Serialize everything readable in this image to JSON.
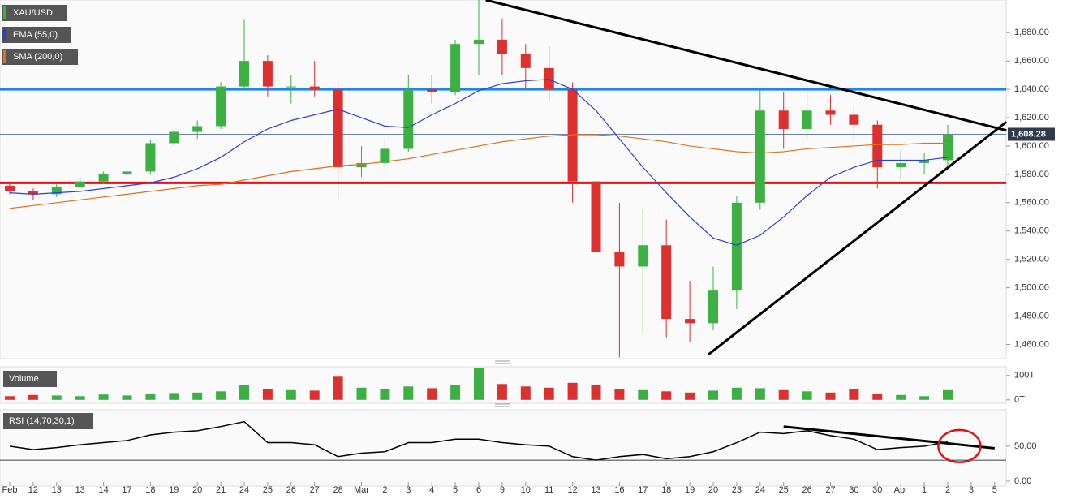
{
  "chart_data": [
    {
      "type": "candlestick",
      "title": "XAU/USD",
      "categories": [
        "Feb",
        "12",
        "13",
        "13",
        "14",
        "17",
        "18",
        "19",
        "20",
        "21",
        "24",
        "25",
        "26",
        "27",
        "28",
        "Mar",
        "2",
        "3",
        "4",
        "5",
        "6",
        "9",
        "10",
        "11",
        "12",
        "13",
        "16",
        "17",
        "18",
        "19",
        "20",
        "23",
        "24",
        "25",
        "26",
        "27",
        "30",
        "30",
        "Apr",
        "1",
        "2",
        "3",
        "5"
      ],
      "open": [
        1572,
        1568,
        1566,
        1571,
        1575,
        1580,
        1582,
        1602,
        1610,
        1614,
        1642,
        1660,
        1642,
        1642,
        1640,
        1585,
        1588,
        1598,
        1640,
        1638,
        1672,
        1675,
        1665,
        1655,
        1640,
        1575,
        1525,
        1515,
        1530,
        1478,
        1475,
        1498,
        1560,
        1625,
        1612,
        1625,
        1622,
        1615,
        1585,
        1588,
        1590,
        null,
        null
      ],
      "high": [
        1575,
        1570,
        1573,
        1578,
        1582,
        1584,
        1604,
        1612,
        1618,
        1645,
        1689,
        1664,
        1650,
        1660,
        1645,
        1600,
        1605,
        1650,
        1650,
        1675,
        1703,
        1690,
        1672,
        1670,
        1645,
        1590,
        1560,
        1555,
        1548,
        1505,
        1515,
        1565,
        1640,
        1638,
        1642,
        1636,
        1628,
        1618,
        1597,
        1595,
        1615,
        null,
        null
      ],
      "low": [
        1566,
        1562,
        1564,
        1570,
        1573,
        1578,
        1580,
        1600,
        1605,
        1612,
        1640,
        1635,
        1630,
        1635,
        1563,
        1578,
        1584,
        1596,
        1630,
        1636,
        1650,
        1650,
        1640,
        1632,
        1560,
        1505,
        1451,
        1468,
        1465,
        1462,
        1470,
        1485,
        1555,
        1598,
        1605,
        1615,
        1605,
        1570,
        1577,
        1580,
        1585,
        null,
        null
      ],
      "close": [
        1568,
        1566,
        1571,
        1575,
        1580,
        1582,
        1602,
        1610,
        1614,
        1642,
        1660,
        1642,
        1642,
        1640,
        1585,
        1588,
        1598,
        1640,
        1638,
        1672,
        1675,
        1665,
        1655,
        1640,
        1575,
        1525,
        1515,
        1530,
        1478,
        1475,
        1498,
        1560,
        1625,
        1612,
        1625,
        1622,
        1615,
        1585,
        1588,
        1590,
        1608,
        null,
        null
      ],
      "up_color": "#3cb043",
      "down_color": "#dd3030",
      "series": [
        {
          "name": "EMA (55,0)",
          "color": "#2b3fd6",
          "values": [
            1567,
            1566,
            1567,
            1568,
            1570,
            1572,
            1574,
            1578,
            1584,
            1592,
            1603,
            1612,
            1618,
            1622,
            1626,
            1620,
            1614,
            1613,
            1622,
            1630,
            1639,
            1644,
            1646,
            1647,
            1640,
            1625,
            1605,
            1585,
            1567,
            1550,
            1535,
            1530,
            1537,
            1550,
            1565,
            1578,
            1585,
            1590,
            1590,
            1590,
            1592,
            null,
            null
          ]
        },
        {
          "name": "SMA (200,0)",
          "color": "#e07020",
          "values": [
            1556,
            1558,
            1560,
            1562,
            1564,
            1566,
            1568,
            1570,
            1572,
            1573,
            1576,
            1579,
            1582,
            1584,
            1586,
            1587,
            1589,
            1591,
            1594,
            1597,
            1600,
            1603,
            1605,
            1607,
            1608,
            1608,
            1607,
            1605,
            1603,
            1600,
            1598,
            1596,
            1595,
            1596,
            1598,
            1599,
            1600,
            1601,
            1601,
            1602,
            1602,
            null,
            null
          ]
        }
      ],
      "levels": [
        {
          "value": 1640,
          "color": "#1e88e5"
        },
        {
          "value": 1574,
          "color": "#e81010"
        }
      ],
      "trendlines": [
        {
          "x": [
            20.3,
            42.5
          ],
          "y": [
            1703,
            1611
          ]
        },
        {
          "x": [
            29.8,
            42.5
          ],
          "y": [
            1453,
            1617
          ]
        }
      ],
      "last_price": {
        "value": 1608.28,
        "label": "1,608.28"
      },
      "ylim": [
        1450,
        1703
      ],
      "yticks": [
        {
          "value": 1460,
          "label": "1,460.00"
        },
        {
          "value": 1480,
          "label": "1,480.00"
        },
        {
          "value": 1500,
          "label": "1,500.00"
        },
        {
          "value": 1520,
          "label": "1,520.00"
        },
        {
          "value": 1540,
          "label": "1,540.00"
        },
        {
          "value": 1560,
          "label": "1,560.00"
        },
        {
          "value": 1580,
          "label": "1,580.00"
        },
        {
          "value": 1600,
          "label": "1,600.00"
        },
        {
          "value": 1620,
          "label": "1,620.00"
        },
        {
          "value": 1640,
          "label": "1,640.00"
        },
        {
          "value": 1660,
          "label": "1,660.00"
        },
        {
          "value": 1680,
          "label": "1,680.00"
        }
      ]
    },
    {
      "type": "bar",
      "title": "Volume",
      "values": [
        15,
        20,
        18,
        15,
        22,
        18,
        25,
        28,
        30,
        35,
        60,
        45,
        40,
        38,
        95,
        50,
        45,
        55,
        48,
        60,
        130,
        65,
        55,
        50,
        70,
        60,
        45,
        40,
        35,
        30,
        38,
        50,
        48,
        40,
        35,
        30,
        45,
        25,
        20,
        15,
        40,
        null,
        null
      ],
      "ylim": [
        -14,
        136
      ],
      "yticks": [
        {
          "value": 0,
          "label": "0T"
        },
        {
          "value": 100,
          "label": "100T"
        }
      ]
    },
    {
      "type": "line",
      "title": "RSI (14,70,30,1)",
      "values": [
        50,
        45,
        48,
        52,
        55,
        58,
        66,
        70,
        72,
        78,
        85,
        55,
        55,
        52,
        35,
        40,
        42,
        55,
        55,
        60,
        60,
        55,
        52,
        50,
        35,
        30,
        35,
        38,
        32,
        35,
        42,
        55,
        70,
        68,
        72,
        65,
        60,
        45,
        48,
        50,
        56,
        null,
        null
      ],
      "color": "#000000",
      "bands": [
        30,
        70
      ],
      "trendlines": [
        {
          "x": [
            33,
            42
          ],
          "y": [
            78,
            47
          ]
        }
      ],
      "ylim": [
        -7,
        102
      ],
      "yticks": [
        {
          "value": 0,
          "label": "0.00"
        },
        {
          "value": 50,
          "label": "50.00"
        }
      ]
    }
  ]
}
